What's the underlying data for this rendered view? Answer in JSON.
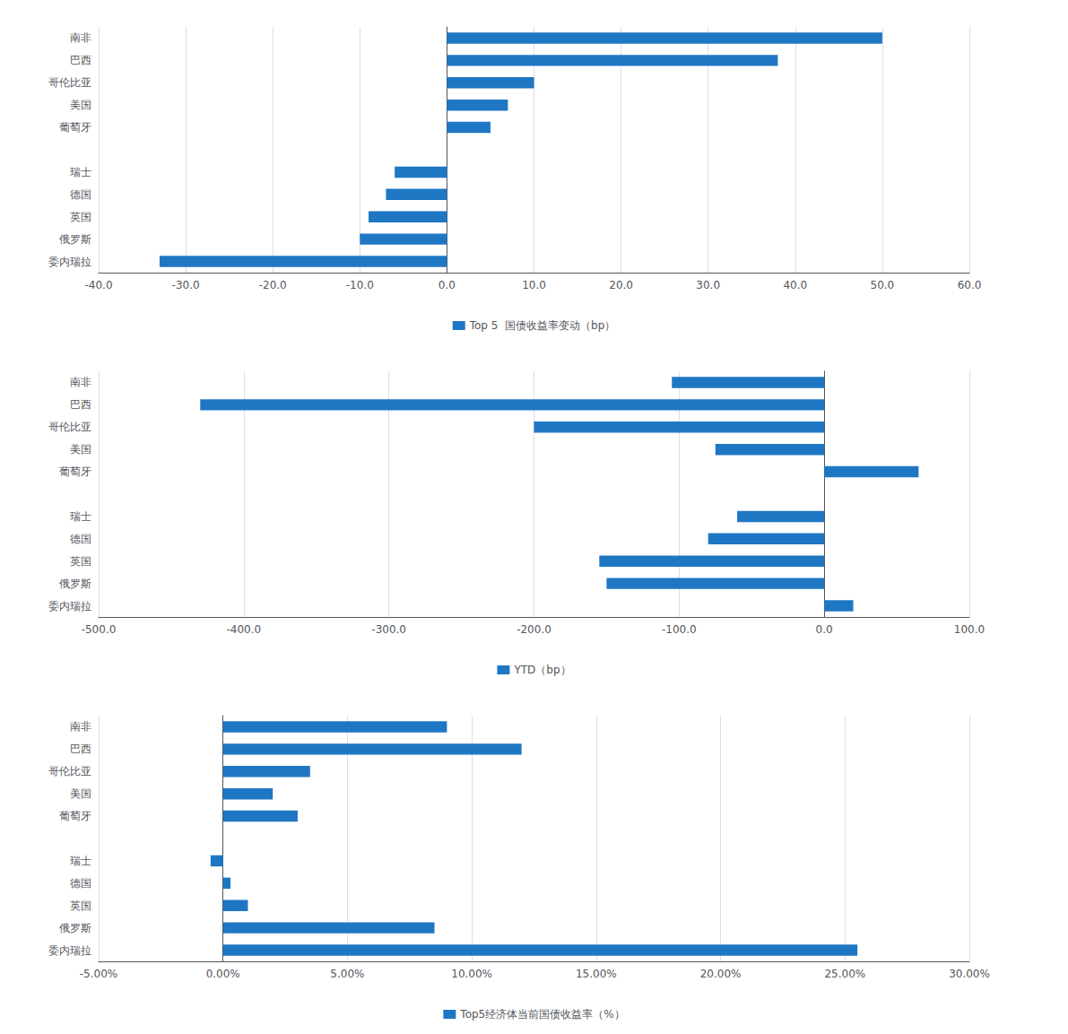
{
  "chart_data": [
    {
      "type": "bar",
      "orientation": "horizontal",
      "grid": true,
      "legend": "bottom",
      "categories": [
        "委内瑞拉",
        "俄罗斯",
        "英国",
        "德国",
        "瑞士",
        null,
        "葡萄牙",
        "美国",
        "哥伦比亚",
        "巴西",
        "南非"
      ],
      "series": [
        {
          "name": "Top 5  国债收益率变动（bp）",
          "color": "#1F77C4",
          "values": [
            -33,
            -10,
            -9,
            -7,
            -6,
            null,
            5,
            7,
            10,
            38,
            50
          ]
        }
      ],
      "xlim": [
        -40,
        60
      ],
      "xticks": [
        {
          "value": -40,
          "label": "-40.0"
        },
        {
          "value": -30,
          "label": "-30.0"
        },
        {
          "value": -20,
          "label": "-20.0"
        },
        {
          "value": -10,
          "label": "-10.0"
        },
        {
          "value": 0,
          "label": "0.0"
        },
        {
          "value": 10,
          "label": "10.0"
        },
        {
          "value": 20,
          "label": "20.0"
        },
        {
          "value": 30,
          "label": "30.0"
        },
        {
          "value": 40,
          "label": "40.0"
        },
        {
          "value": 50,
          "label": "50.0"
        },
        {
          "value": 60,
          "label": "60.0"
        }
      ]
    },
    {
      "type": "bar",
      "orientation": "horizontal",
      "grid": true,
      "legend": "bottom",
      "categories": [
        "委内瑞拉",
        "俄罗斯",
        "英国",
        "德国",
        "瑞士",
        null,
        "葡萄牙",
        "美国",
        "哥伦比亚",
        "巴西",
        "南非"
      ],
      "series": [
        {
          "name": "YTD（bp）",
          "color": "#1F77C4",
          "values": [
            20,
            -150,
            -155,
            -80,
            -60,
            null,
            65,
            -75,
            -200,
            -430,
            -105
          ]
        }
      ],
      "xlim": [
        -500,
        100
      ],
      "xticks": [
        {
          "value": -500,
          "label": "-500.0"
        },
        {
          "value": -400,
          "label": "-400.0"
        },
        {
          "value": -300,
          "label": "-300.0"
        },
        {
          "value": -200,
          "label": "-200.0"
        },
        {
          "value": -100,
          "label": "-100.0"
        },
        {
          "value": 0,
          "label": "0.0"
        },
        {
          "value": 100,
          "label": "100.0"
        }
      ]
    },
    {
      "type": "bar",
      "orientation": "horizontal",
      "grid": true,
      "legend": "bottom",
      "categories": [
        "委内瑞拉",
        "俄罗斯",
        "英国",
        "德国",
        "瑞士",
        null,
        "葡萄牙",
        "美国",
        "哥伦比亚",
        "巴西",
        "南非"
      ],
      "series": [
        {
          "name": "Top5经济体当前国债收益率（%）",
          "color": "#1F77C4",
          "values": [
            0.255,
            0.085,
            0.01,
            0.003,
            -0.005,
            null,
            0.03,
            0.02,
            0.035,
            0.12,
            0.09
          ]
        }
      ],
      "xlim": [
        -0.05,
        0.3
      ],
      "xticks": [
        {
          "value": -0.05,
          "label": "-5.00%"
        },
        {
          "value": 0.0,
          "label": "0.00%"
        },
        {
          "value": 0.05,
          "label": "5.00%"
        },
        {
          "value": 0.1,
          "label": "10.00%"
        },
        {
          "value": 0.15,
          "label": "15.00%"
        },
        {
          "value": 0.2,
          "label": "20.00%"
        },
        {
          "value": 0.25,
          "label": "25.00%"
        },
        {
          "value": 0.3,
          "label": "30.00%"
        }
      ]
    }
  ]
}
